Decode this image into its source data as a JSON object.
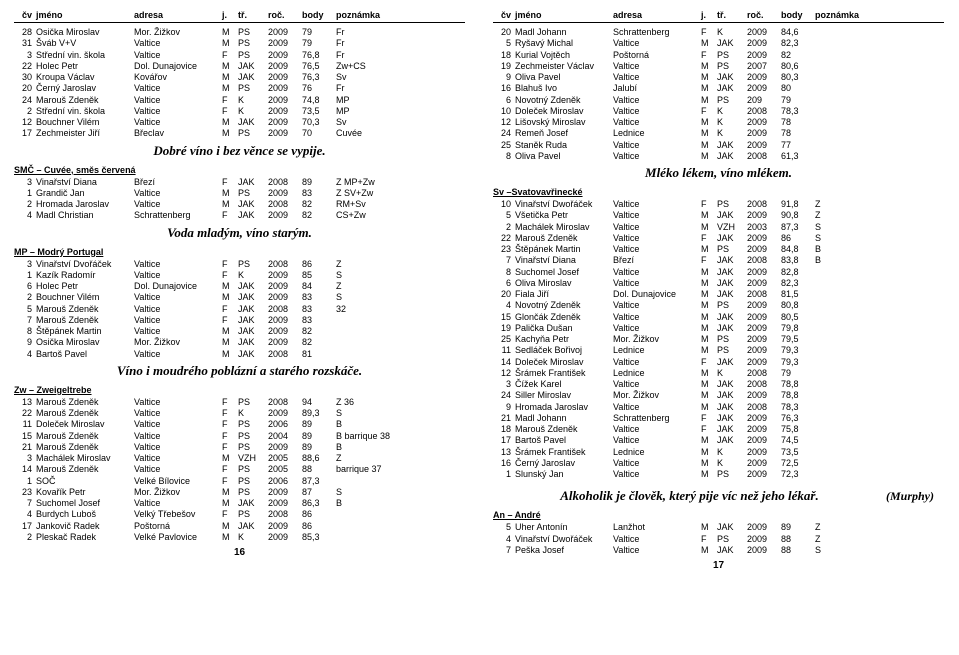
{
  "headers": {
    "cv": "čv",
    "jmeno": "jméno",
    "adresa": "adresa",
    "j": "j.",
    "tr": "tř.",
    "roc": "roč.",
    "body": "body",
    "pozn": "poznámka"
  },
  "left": {
    "block1": [
      [
        "28",
        "Osička Miroslav",
        "Mor. Žižkov",
        "M",
        "PS",
        "2009",
        "79",
        "Fr"
      ],
      [
        "31",
        "Šváb V+V",
        "Valtice",
        "M",
        "PS",
        "2009",
        "79",
        "Fr"
      ],
      [
        "3",
        "Střední vin. škola",
        "Valtice",
        "F",
        "PS",
        "2009",
        "76,8",
        "Fr"
      ],
      [
        "22",
        "Holec Petr",
        "Dol. Dunajovice",
        "M",
        "JAK",
        "2009",
        "76,5",
        "Zw+CS"
      ],
      [
        "30",
        "Kroupa Václav",
        "Kovářov",
        "M",
        "JAK",
        "2009",
        "76,3",
        "Sv"
      ],
      [
        "20",
        "Černý Jaroslav",
        "Valtice",
        "M",
        "PS",
        "2009",
        "76",
        "Fr"
      ],
      [
        "24",
        "Marouš Zdeněk",
        "Valtice",
        "F",
        "K",
        "2009",
        "74,8",
        "MP"
      ],
      [
        "2",
        "Střední vin. škola",
        "Valtice",
        "F",
        "K",
        "2009",
        "73,5",
        "MP"
      ],
      [
        "12",
        "Bouchner Vilém",
        "Valtice",
        "M",
        "JAK",
        "2009",
        "70,3",
        "Sv"
      ],
      [
        "17",
        "Zechmeister Jiří",
        "Břeclav",
        "M",
        "PS",
        "2009",
        "70",
        "Cuvée"
      ]
    ],
    "quote1": "Dobré víno i bez věnce se vypije.",
    "sec1": "SMČ – Cuvée, směs červená",
    "block2": [
      [
        "3",
        "Vinařství Diana",
        "Březí",
        "F",
        "JAK",
        "2008",
        "89",
        "Z   MP+Zw"
      ],
      [
        "1",
        "Grandič Jan",
        "Valtice",
        "M",
        "PS",
        "2009",
        "83",
        "Z   SV+Zw"
      ],
      [
        "2",
        "Hromada Jaroslav",
        "Valtice",
        "M",
        "JAK",
        "2008",
        "82",
        "RM+Sv"
      ],
      [
        "4",
        "Madl Christian",
        "Schrattenberg",
        "F",
        "JAK",
        "2009",
        "82",
        "CS+Zw"
      ]
    ],
    "quote2": "Voda mladým, víno starým.",
    "sec2": "MP – Modrý Portugal",
    "block3": [
      [
        "3",
        "Vinařství Dvořáček",
        "Valtice",
        "F",
        "PS",
        "2008",
        "86",
        "Z"
      ],
      [
        "1",
        "Kazík Radomír",
        "Valtice",
        "F",
        "K",
        "2009",
        "85",
        "S"
      ],
      [
        "6",
        "Holec Petr",
        "Dol. Dunajovice",
        "M",
        "JAK",
        "2009",
        "84",
        "Z"
      ],
      [
        "2",
        "Bouchner Vilém",
        "Valtice",
        "M",
        "JAK",
        "2009",
        "83",
        "S"
      ],
      [
        "5",
        "Marouš Zdeněk",
        "Valtice",
        "F",
        "JAK",
        "2008",
        "83",
        "32"
      ],
      [
        "7",
        "Marouš Zdeněk",
        "Valtice",
        "F",
        "JAK",
        "2009",
        "83",
        ""
      ],
      [
        "8",
        "Štěpánek Martin",
        "Valtice",
        "M",
        "JAK",
        "2009",
        "82",
        ""
      ],
      [
        "9",
        "Osička Miroslav",
        "Mor. Žižkov",
        "M",
        "JAK",
        "2009",
        "82",
        ""
      ],
      [
        "4",
        "Bartoš Pavel",
        "Valtice",
        "M",
        "JAK",
        "2008",
        "81",
        ""
      ]
    ],
    "quote3": "Víno i moudrého poblázní a starého rozskáče.",
    "sec3": "Zw – Zweigeltrebe",
    "block4": [
      [
        "13",
        "Marouš Zdeněk",
        "Valtice",
        "F",
        "PS",
        "2008",
        "94",
        "Z   36"
      ],
      [
        "22",
        "Marouš Zdeněk",
        "Valtice",
        "F",
        "K",
        "2009",
        "89,3",
        "S"
      ],
      [
        "11",
        "Doleček Miroslav",
        "Valtice",
        "F",
        "PS",
        "2006",
        "89",
        "B"
      ],
      [
        "15",
        "Marouš Zdeněk",
        "Valtice",
        "F",
        "PS",
        "2004",
        "89",
        "B   barrique 38"
      ],
      [
        "21",
        "Marouš Zdeněk",
        "Valtice",
        "F",
        "PS",
        "2009",
        "89",
        "B"
      ],
      [
        "3",
        "Machálek Miroslav",
        "Valtice",
        "M",
        "VZH",
        "2005",
        "88,6",
        "Z"
      ],
      [
        "14",
        "Marouš Zdeněk",
        "Valtice",
        "F",
        "PS",
        "2005",
        "88",
        "barrique 37"
      ],
      [
        "1",
        "SOČ",
        "Velké Bílovice",
        "F",
        "PS",
        "2006",
        "87,3",
        ""
      ],
      [
        "23",
        "Kovařík Petr",
        "Mor. Žižkov",
        "M",
        "PS",
        "2009",
        "87",
        "S"
      ],
      [
        "7",
        "Suchomel Josef",
        "Valtice",
        "M",
        "JAK",
        "2009",
        "86,3",
        "B"
      ],
      [
        "4",
        "Burdych Luboš",
        "Velký Třebešov",
        "F",
        "PS",
        "2008",
        "86",
        ""
      ],
      [
        "17",
        "Jankovič Radek",
        "Poštorná",
        "M",
        "JAK",
        "2009",
        "86",
        ""
      ],
      [
        "2",
        "Pleskač Radek",
        "Velké Pavlovice",
        "M",
        "K",
        "2009",
        "85,3",
        ""
      ]
    ],
    "pagenum": "16"
  },
  "right": {
    "block1": [
      [
        "20",
        "Madl Johann",
        "Schrattenberg",
        "F",
        "K",
        "2009",
        "84,6",
        ""
      ],
      [
        "5",
        "Ryšavý Michal",
        "Valtice",
        "M",
        "JAK",
        "2009",
        "82,3",
        ""
      ],
      [
        "18",
        "Kurial Vojtěch",
        "Poštorná",
        "F",
        "PS",
        "2009",
        "82",
        ""
      ],
      [
        "19",
        "Zechmeister Václav",
        "Valtice",
        "M",
        "PS",
        "2007",
        "80,6",
        ""
      ],
      [
        "9",
        "Oliva Pavel",
        "Valtice",
        "M",
        "JAK",
        "2009",
        "80,3",
        ""
      ],
      [
        "16",
        "Blahuš Ivo",
        "Jalubí",
        "M",
        "JAK",
        "2009",
        "80",
        ""
      ],
      [
        "6",
        "Novotný Zdeněk",
        "Valtice",
        "M",
        "PS",
        "209",
        "79",
        ""
      ],
      [
        "10",
        "Doleček Miroslav",
        "Valtice",
        "F",
        "K",
        "2008",
        "78,3",
        ""
      ],
      [
        "12",
        "Lišovský Miroslav",
        "Valtice",
        "M",
        "K",
        "2009",
        "78",
        ""
      ],
      [
        "24",
        "Remeň Josef",
        "Lednice",
        "M",
        "K",
        "2009",
        "78",
        ""
      ],
      [
        "25",
        "Staněk Ruda",
        "Valtice",
        "M",
        "JAK",
        "2009",
        "77",
        ""
      ],
      [
        "8",
        "Oliva Pavel",
        "Valtice",
        "M",
        "JAK",
        "2008",
        "61,3",
        ""
      ]
    ],
    "quote1": "Mléko lékem, víno mlékem.",
    "sec1": "Sv –Svatovavřinecké",
    "block2": [
      [
        "10",
        "Vinařství Dwořáček",
        "Valtice",
        "F",
        "PS",
        "2008",
        "91,8",
        "Z"
      ],
      [
        "5",
        "Všetička Petr",
        "Valtice",
        "M",
        "JAK",
        "2009",
        "90,8",
        "Z"
      ],
      [
        "2",
        "Machálek Miroslav",
        "Valtice",
        "M",
        "VZH",
        "2003",
        "87,3",
        "S"
      ],
      [
        "22",
        "Marouš Zdeněk",
        "Valtice",
        "F",
        "JAK",
        "2009",
        "86",
        "S"
      ],
      [
        "23",
        "Štěpánek Martin",
        "Valtice",
        "M",
        "PS",
        "2009",
        "84,8",
        "B"
      ],
      [
        "7",
        "Vinařství Diana",
        "Březí",
        "F",
        "JAK",
        "2008",
        "83,8",
        "B"
      ],
      [
        "8",
        "Suchomel Josef",
        "Valtice",
        "M",
        "JAK",
        "2009",
        "82,8",
        ""
      ],
      [
        "6",
        "Oliva Miroslav",
        "Valtice",
        "M",
        "JAK",
        "2009",
        "82,3",
        ""
      ],
      [
        "20",
        "Fiala Jiří",
        "Dol. Dunajovice",
        "M",
        "JAK",
        "2008",
        "81,5",
        ""
      ],
      [
        "4",
        "Novotný Zdeněk",
        "Valtice",
        "M",
        "PS",
        "2009",
        "80,8",
        ""
      ],
      [
        "15",
        "Glončák Zdeněk",
        "Valtice",
        "M",
        "JAK",
        "2009",
        "80,5",
        ""
      ],
      [
        "19",
        "Palička Dušan",
        "Valtice",
        "M",
        "JAK",
        "2009",
        "79,8",
        ""
      ],
      [
        "25",
        "Kachyňa Petr",
        "Mor. Žižkov",
        "M",
        "PS",
        "2009",
        "79,5",
        ""
      ],
      [
        "11",
        "Sedláček Bořivoj",
        "Lednice",
        "M",
        "PS",
        "2009",
        "79,3",
        ""
      ],
      [
        "14",
        "Doleček Miroslav",
        "Valtice",
        "F",
        "JAK",
        "2009",
        "79,3",
        ""
      ],
      [
        "12",
        "Šrámek František",
        "Lednice",
        "M",
        "K",
        "2008",
        "79",
        ""
      ],
      [
        "3",
        "Čížek Karel",
        "Valtice",
        "M",
        "JAK",
        "2008",
        "78,8",
        ""
      ],
      [
        "24",
        "Siller Miroslav",
        "Mor. Žižkov",
        "M",
        "JAK",
        "2009",
        "78,8",
        ""
      ],
      [
        "9",
        "Hromada Jaroslav",
        "Valtice",
        "M",
        "JAK",
        "2008",
        "78,3",
        ""
      ],
      [
        "21",
        "Madl Johann",
        "Schrattenberg",
        "F",
        "JAK",
        "2009",
        "76,3",
        ""
      ],
      [
        "18",
        "Marouš Zdeněk",
        "Valtice",
        "F",
        "JAK",
        "2009",
        "75,8",
        ""
      ],
      [
        "17",
        "Bartoš Pavel",
        "Valtice",
        "M",
        "JAK",
        "2009",
        "74,5",
        ""
      ],
      [
        "13",
        "Šrámek František",
        "Lednice",
        "M",
        "K",
        "2009",
        "73,5",
        ""
      ],
      [
        "16",
        "Černý Jaroslav",
        "Valtice",
        "M",
        "K",
        "2009",
        "72,5",
        ""
      ],
      [
        "1",
        "Slunský Jan",
        "Valtice",
        "M",
        "PS",
        "2009",
        "72,3",
        ""
      ]
    ],
    "quote2": "Alkoholik je člověk, který pije víc než jeho lékař.",
    "quote2_attr": "(Murphy)",
    "sec2": "An – André",
    "block3": [
      [
        "5",
        "Uher Antonín",
        "Lanžhot",
        "M",
        "JAK",
        "2009",
        "89",
        "Z"
      ],
      [
        "4",
        "Vinařství Dwořáček",
        "Valtice",
        "F",
        "PS",
        "2009",
        "88",
        "Z"
      ],
      [
        "7",
        "Peška Josef",
        "Valtice",
        "M",
        "JAK",
        "2009",
        "88",
        "S"
      ]
    ],
    "pagenum": "17"
  }
}
